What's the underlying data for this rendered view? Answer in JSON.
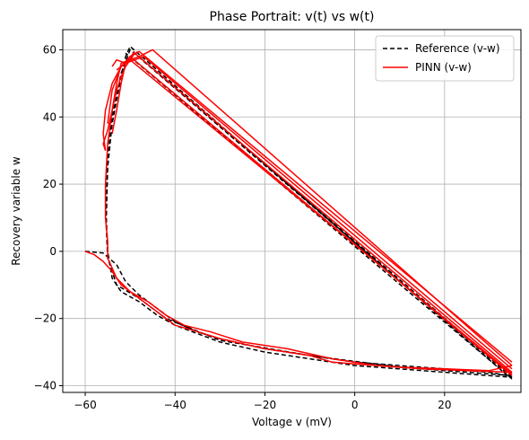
{
  "chart_data": {
    "type": "line",
    "title": "Phase Portrait: v(t) vs w(t)",
    "xlabel": "Voltage v (mV)",
    "ylabel": "Recovery variable w",
    "xlim": [
      -65,
      37
    ],
    "ylim": [
      -42,
      66
    ],
    "xticks": [
      -60,
      -40,
      -20,
      0,
      20
    ],
    "yticks": [
      -40,
      -20,
      0,
      20,
      40,
      60
    ],
    "grid": true,
    "legend": "top-right",
    "series": [
      {
        "name": "Reference (v-w)",
        "color": "#000000",
        "dash": "dashed",
        "segments": [
          [
            [
              -60,
              0
            ],
            [
              -56,
              -0.5
            ],
            [
              -53,
              -4
            ],
            [
              -51,
              -9
            ],
            [
              -48,
              -13
            ],
            [
              -45,
              -16
            ],
            [
              -40,
              -21
            ],
            [
              -35,
              -24
            ],
            [
              -30,
              -26
            ],
            [
              -20,
              -29
            ],
            [
              -10,
              -31
            ],
            [
              0,
              -33
            ],
            [
              10,
              -34
            ],
            [
              20,
              -35
            ],
            [
              30,
              -36
            ],
            [
              34,
              -37
            ]
          ],
          [
            [
              34,
              -37
            ],
            [
              -50,
              61
            ],
            [
              -51,
              58
            ],
            [
              -52,
              52
            ],
            [
              -53,
              45
            ],
            [
              -54,
              38
            ],
            [
              -55,
              25
            ],
            [
              -55.3,
              10
            ],
            [
              -55,
              0
            ],
            [
              -54,
              -8
            ],
            [
              -52,
              -12
            ],
            [
              -48,
              -15
            ],
            [
              -44,
              -19
            ],
            [
              -40,
              -22
            ],
            [
              -30,
              -27
            ],
            [
              -20,
              -30
            ],
            [
              -10,
              -32
            ],
            [
              0,
              -34
            ],
            [
              10,
              -35
            ],
            [
              20,
              -36
            ],
            [
              30,
              -37
            ],
            [
              35,
              -37.5
            ]
          ],
          [
            [
              35,
              -37.5
            ],
            [
              -50,
              60
            ],
            [
              -52,
              53
            ],
            [
              -54,
              40
            ],
            [
              -55,
              28
            ],
            [
              -55.4,
              10
            ],
            [
              -55,
              -2
            ],
            [
              -53,
              -10
            ],
            [
              -48,
              -14
            ],
            [
              -42,
              -20
            ],
            [
              -30,
              -26.5
            ],
            [
              -10,
              -31
            ],
            [
              10,
              -34.5
            ],
            [
              35,
              -37
            ]
          ],
          [
            [
              35,
              -37
            ],
            [
              -49,
              59
            ]
          ],
          [
            [
              35,
              -38
            ],
            [
              -51,
              59
            ]
          ]
        ]
      },
      {
        "name": "PINN (v-w)",
        "color": "#ff0000",
        "dash": "solid",
        "segments": [
          [
            [
              -60,
              0
            ],
            [
              -58,
              -1
            ],
            [
              -56,
              -3
            ],
            [
              -54,
              -6
            ],
            [
              -52,
              -10
            ],
            [
              -49,
              -13
            ],
            [
              -46,
              -16
            ],
            [
              -43,
              -19
            ],
            [
              -40,
              -22
            ],
            [
              -36,
              -23.5
            ],
            [
              -30,
              -26
            ],
            [
              -25,
              -27.5
            ],
            [
              -20,
              -29
            ],
            [
              -15,
              -30
            ],
            [
              -10,
              -31
            ],
            [
              -5,
              -33
            ],
            [
              0,
              -33.5
            ],
            [
              5,
              -34
            ],
            [
              10,
              -34.5
            ],
            [
              20,
              -35
            ],
            [
              30,
              -35.5
            ],
            [
              35,
              -34
            ]
          ],
          [
            [
              35,
              -34
            ],
            [
              -45,
              60
            ],
            [
              -48,
              58
            ],
            [
              -50,
              57
            ],
            [
              -52,
              56
            ],
            [
              -53,
              50
            ],
            [
              -54,
              42
            ],
            [
              -55,
              32
            ],
            [
              -55.5,
              20
            ],
            [
              -55.5,
              10
            ],
            [
              -55,
              3
            ]
          ],
          [
            [
              -55,
              3
            ],
            [
              -55,
              -2
            ],
            [
              -53,
              -8
            ],
            [
              -50,
              -12
            ],
            [
              -46,
              -15
            ],
            [
              -42,
              -19
            ],
            [
              -38,
              -22
            ],
            [
              -32,
              -24
            ],
            [
              -25,
              -27
            ],
            [
              -15,
              -29
            ],
            [
              -5,
              -32
            ],
            [
              5,
              -34
            ],
            [
              15,
              -35
            ],
            [
              25,
              -35.5
            ],
            [
              35,
              -36
            ]
          ],
          [
            [
              35,
              -36
            ],
            [
              -49,
              59
            ],
            [
              -50,
              57
            ],
            [
              -52,
              55
            ],
            [
              -54,
              50
            ],
            [
              -55.5,
              42
            ],
            [
              -56,
              35
            ],
            [
              -55.5,
              30
            ]
          ],
          [
            [
              -55.5,
              30
            ],
            [
              -56,
              32
            ],
            [
              -55,
              36
            ],
            [
              -54,
              42
            ],
            [
              -53,
              48
            ],
            [
              -52,
              52
            ],
            [
              -51,
              55
            ],
            [
              -50,
              57
            ],
            [
              -49,
              59
            ]
          ],
          [
            [
              35,
              -35
            ],
            [
              -47,
              58
            ],
            [
              -49,
              57
            ],
            [
              -51,
              56
            ],
            [
              -53,
              57
            ],
            [
              -54,
              55
            ]
          ],
          [
            [
              35,
              -33
            ],
            [
              -48,
              59.5
            ],
            [
              -50,
              58
            ]
          ],
          [
            [
              35,
              -37
            ],
            [
              -50,
              58
            ],
            [
              -52,
              55
            ],
            [
              -54,
              48
            ],
            [
              -55,
              38
            ]
          ],
          [
            [
              -54,
              35
            ],
            [
              -53,
              42
            ],
            [
              -52,
              50
            ],
            [
              -51,
              56
            ],
            [
              -49,
              59.5
            ]
          ],
          [
            [
              35,
              -36.5
            ],
            [
              -50,
              57
            ],
            [
              -53,
              54
            ]
          ]
        ]
      }
    ]
  }
}
